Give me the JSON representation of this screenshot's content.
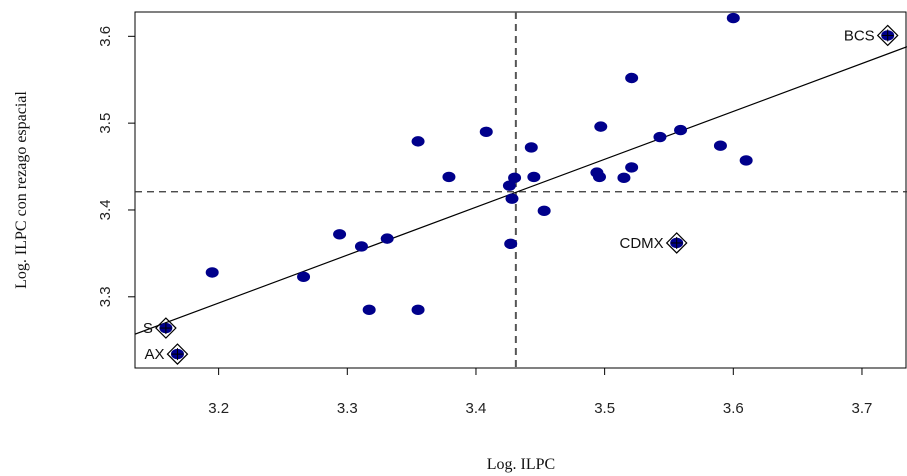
{
  "chart_data": {
    "type": "scatter",
    "title": "",
    "xlabel": "Log. ILPC",
    "ylabel": "Log. ILPC con rezago espacial",
    "xlim": [
      3.135,
      3.735
    ],
    "ylim": [
      3.218,
      3.628
    ],
    "xticks": [
      "3.2",
      "3.3",
      "3.4",
      "3.5",
      "3.6",
      "3.7"
    ],
    "yticks": [
      "3.3",
      "3.4",
      "3.5",
      "3.6"
    ],
    "grid": false,
    "point_color": "#00008b",
    "mean_x": 3.431,
    "mean_y": 3.421,
    "regression_line": {
      "x": [
        3.135,
        3.735
      ],
      "y": [
        3.257,
        3.588
      ]
    },
    "points": [
      {
        "x": 3.195,
        "y": 3.328
      },
      {
        "x": 3.266,
        "y": 3.323
      },
      {
        "x": 3.294,
        "y": 3.372
      },
      {
        "x": 3.311,
        "y": 3.358
      },
      {
        "x": 3.317,
        "y": 3.285
      },
      {
        "x": 3.331,
        "y": 3.367
      },
      {
        "x": 3.355,
        "y": 3.479
      },
      {
        "x": 3.355,
        "y": 3.285
      },
      {
        "x": 3.379,
        "y": 3.438
      },
      {
        "x": 3.408,
        "y": 3.49
      },
      {
        "x": 3.426,
        "y": 3.428
      },
      {
        "x": 3.428,
        "y": 3.413
      },
      {
        "x": 3.43,
        "y": 3.437
      },
      {
        "x": 3.427,
        "y": 3.361
      },
      {
        "x": 3.443,
        "y": 3.472
      },
      {
        "x": 3.445,
        "y": 3.438
      },
      {
        "x": 3.453,
        "y": 3.399
      },
      {
        "x": 3.494,
        "y": 3.443
      },
      {
        "x": 3.496,
        "y": 3.438
      },
      {
        "x": 3.497,
        "y": 3.496
      },
      {
        "x": 3.515,
        "y": 3.437
      },
      {
        "x": 3.521,
        "y": 3.449
      },
      {
        "x": 3.521,
        "y": 3.552
      },
      {
        "x": 3.543,
        "y": 3.484
      },
      {
        "x": 3.559,
        "y": 3.492
      },
      {
        "x": 3.59,
        "y": 3.474
      },
      {
        "x": 3.6,
        "y": 3.621
      },
      {
        "x": 3.61,
        "y": 3.457
      }
    ],
    "labeled_points": [
      {
        "label": "BCS",
        "x": 3.72,
        "y": 3.601
      },
      {
        "label": "CDMX",
        "x": 3.556,
        "y": 3.362
      },
      {
        "label": "S",
        "x": 3.159,
        "y": 3.264
      },
      {
        "label": "AX",
        "x": 3.168,
        "y": 3.234
      }
    ]
  }
}
